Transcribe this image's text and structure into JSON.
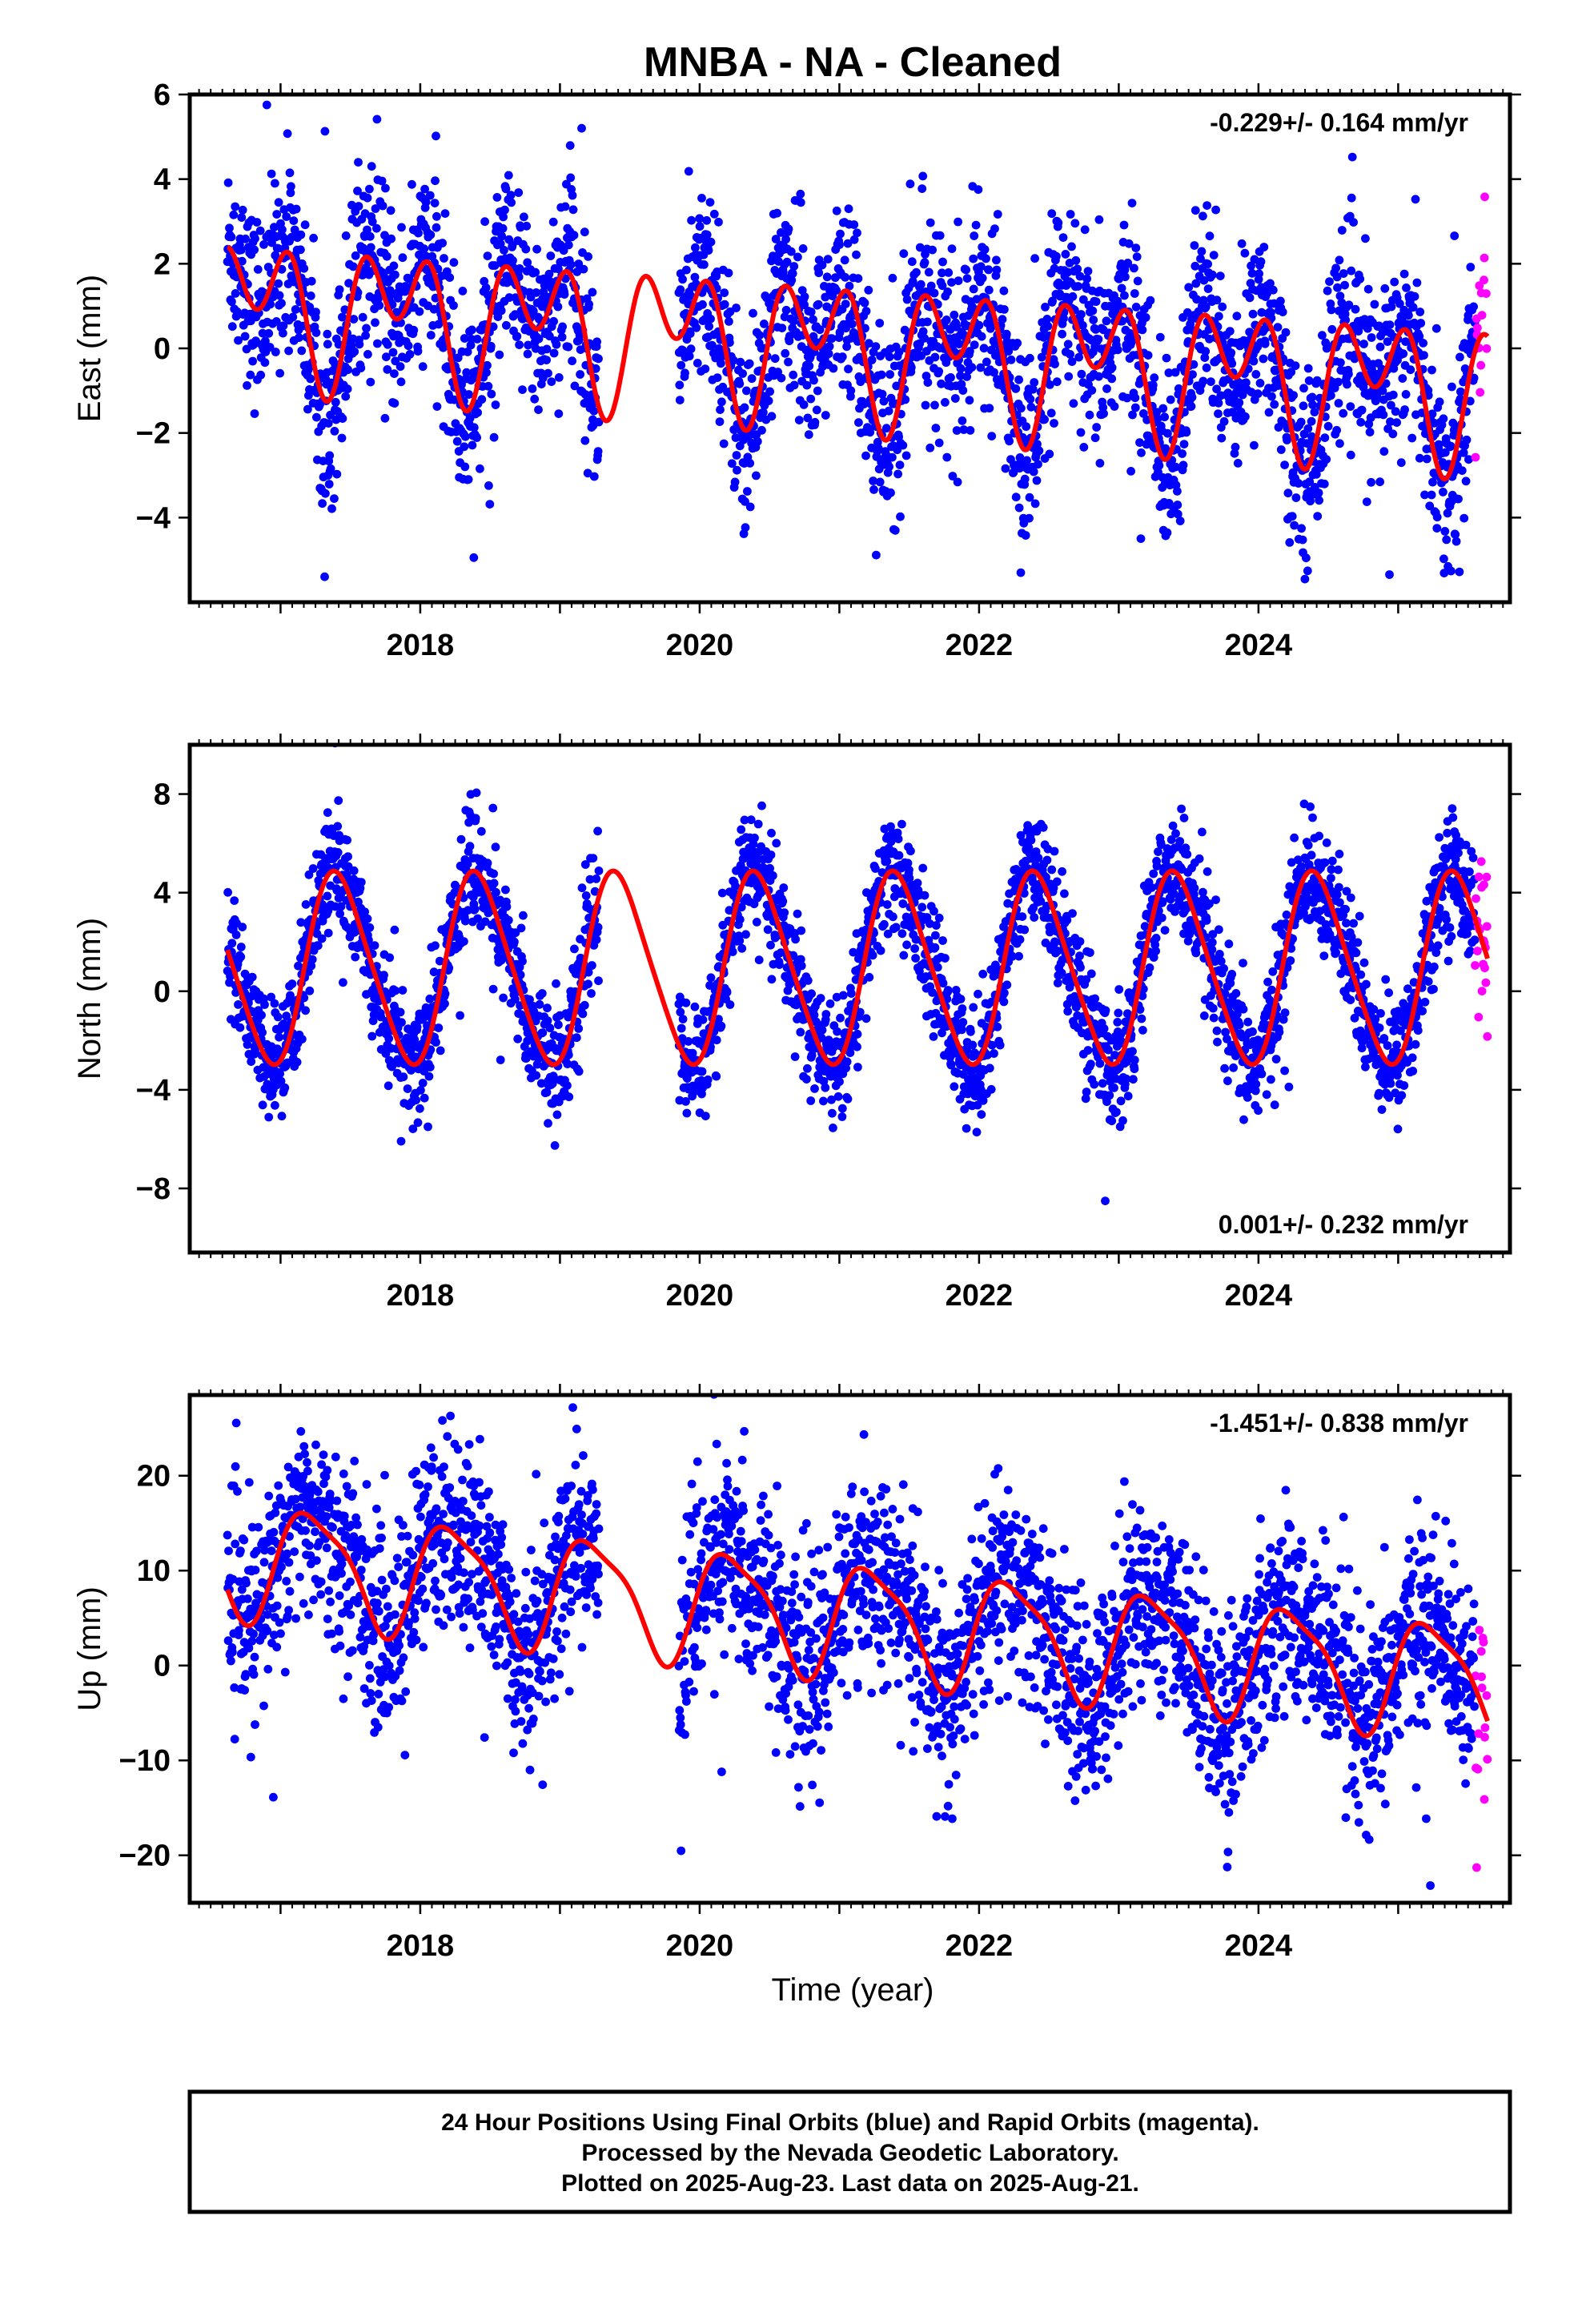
{
  "figure": {
    "title": "MNBA  - NA - Cleaned",
    "xlabel": "Time (year)",
    "footer_lines": [
      "24 Hour Positions Using Final Orbits (blue) and Rapid Orbits (magenta).",
      "Processed by the Nevada Geodetic Laboratory.",
      "Plotted on 2025-Aug-23. Last data on 2025-Aug-21."
    ],
    "colors": {
      "final_orbits": "#0000ff",
      "rapid_orbits": "#ff00ff",
      "model_fit": "#ff0000",
      "frame": "#000000"
    }
  },
  "chart_data": [
    {
      "type": "scatter",
      "panel": "east",
      "ylabel": "East (mm)",
      "rate_label": "-0.229+/- 0.164 mm/yr",
      "rate_label_position": "top-right",
      "xlim": [
        2016.35,
        2025.8
      ],
      "ylim": [
        -6.0,
        6.0
      ],
      "x_ticks": [
        "2018",
        "2020",
        "2022",
        "2024"
      ],
      "y_ticks": [
        "6",
        "4",
        "2",
        "0",
        "−2",
        "−4"
      ],
      "y_tick_values": [
        6,
        4,
        2,
        0,
        -2,
        -4
      ],
      "data_start": 2016.62,
      "gap": [
        2019.28,
        2019.85
      ],
      "rapid_start": 2025.55,
      "last_data": 2025.64,
      "model": {
        "offset": 0.1,
        "trend": -0.229,
        "annual_cos": 0.5,
        "annual_sin": -0.9,
        "semiannual_cos": 0.6,
        "semiannual_sin": 1.0
      },
      "scatter_sd": 1.1,
      "series": [
        {
          "name": "Final Orbits (blue)",
          "color": "#0000ff"
        },
        {
          "name": "Rapid Orbits (magenta)",
          "color": "#ff00ff"
        }
      ]
    },
    {
      "type": "scatter",
      "panel": "north",
      "ylabel": "North (mm)",
      "rate_label": "0.001+/- 0.232 mm/yr",
      "rate_label_position": "bottom-right",
      "xlim": [
        2016.35,
        2025.8
      ],
      "ylim": [
        -10.6,
        10.0
      ],
      "x_ticks": [
        "2018",
        "2020",
        "2022",
        "2024"
      ],
      "y_ticks": [
        "8",
        "4",
        "0",
        "−4",
        "−8"
      ],
      "y_tick_values": [
        8,
        4,
        0,
        -4,
        -8
      ],
      "data_start": 2016.62,
      "gap": [
        2019.28,
        2019.85
      ],
      "rapid_start": 2025.55,
      "last_data": 2025.64,
      "model": {
        "offset": 0.9,
        "trend": 0.001,
        "annual_cos": -3.3,
        "annual_sin": 1.9,
        "semiannual_cos": -0.4,
        "semiannual_sin": -0.3
      },
      "scatter_sd": 1.2,
      "series": [
        {
          "name": "Final Orbits (blue)",
          "color": "#0000ff"
        },
        {
          "name": "Rapid Orbits (magenta)",
          "color": "#ff00ff"
        }
      ]
    },
    {
      "type": "scatter",
      "panel": "up",
      "ylabel": "Up (mm)",
      "rate_label": "-1.451+/- 0.838 mm/yr",
      "rate_label_position": "top-right",
      "xlim": [
        2016.35,
        2025.8
      ],
      "ylim": [
        -25.0,
        28.5
      ],
      "x_ticks": [
        "2018",
        "2020",
        "2022",
        "2024"
      ],
      "y_ticks": [
        "20",
        "10",
        "0",
        "−10",
        "−20"
      ],
      "y_tick_values": [
        20,
        10,
        0,
        -10,
        -20
      ],
      "data_start": 2016.62,
      "gap": [
        2019.28,
        2019.85
      ],
      "rapid_start": 2025.55,
      "last_data": 2025.64,
      "model": {
        "offset": 5.1,
        "trend": -1.451,
        "annual_cos": 0.5,
        "annual_sin": 5.8,
        "semiannual_cos": 1.2,
        "semiannual_sin": 0.8
      },
      "scatter_sd": 5.2,
      "series": [
        {
          "name": "Final Orbits (blue)",
          "color": "#0000ff"
        },
        {
          "name": "Rapid Orbits (magenta)",
          "color": "#ff00ff"
        }
      ]
    }
  ]
}
